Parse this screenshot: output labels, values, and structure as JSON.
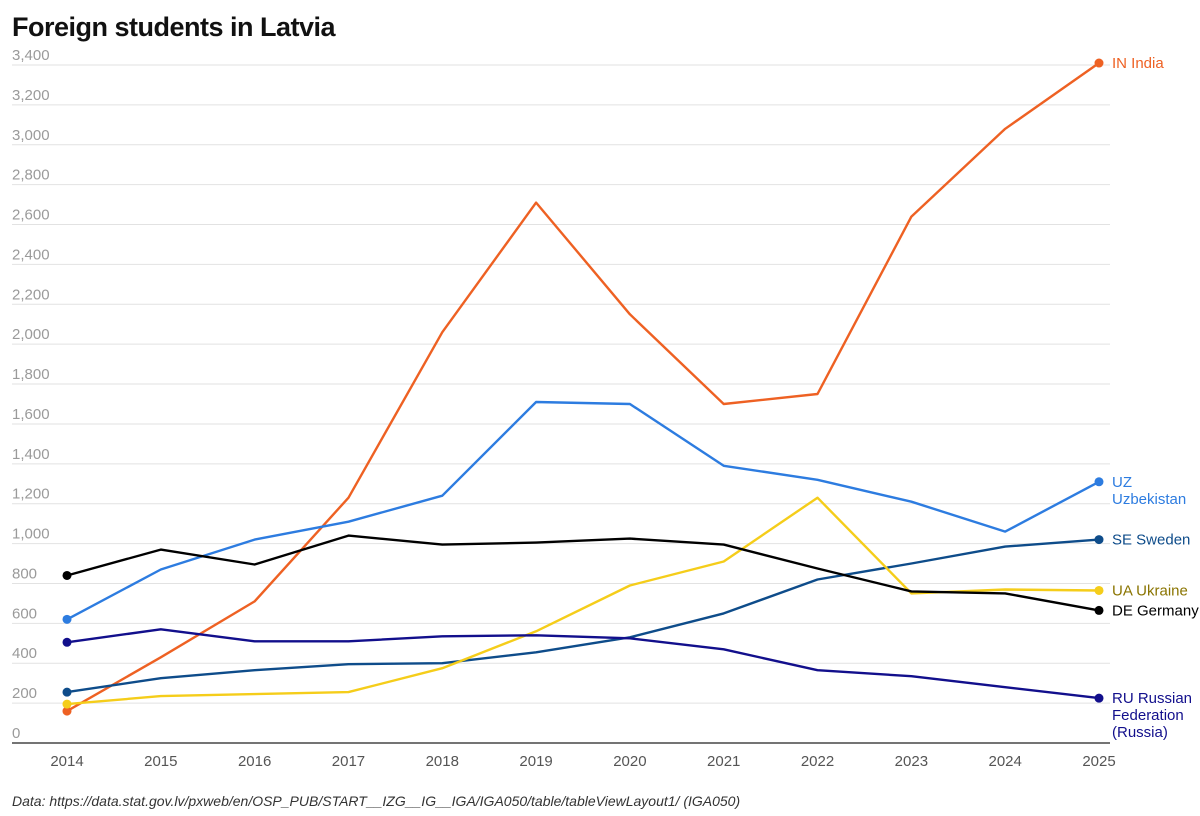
{
  "title": "Foreign students in Latvia",
  "source": "Data: https://data.stat.gov.lv/pxweb/en/OSP_PUB/START__IZG__IG__IGA/IGA050/table/tableViewLayout1/ (IGA050)",
  "chart_data": {
    "type": "line",
    "title": "Foreign students in Latvia",
    "xlabel": "",
    "ylabel": "",
    "x": [
      2014,
      2015,
      2016,
      2017,
      2018,
      2019,
      2020,
      2021,
      2022,
      2023,
      2024,
      2025
    ],
    "ylim": [
      0,
      3400
    ],
    "yticks": [
      0,
      200,
      400,
      600,
      800,
      1000,
      1200,
      1400,
      1600,
      1800,
      2000,
      2200,
      2400,
      2600,
      2800,
      3000,
      3200,
      3400
    ],
    "ytick_labels": [
      "0",
      "200",
      "400",
      "600",
      "800",
      "1,000",
      "1,200",
      "1,400",
      "1,600",
      "1,800",
      "2,000",
      "2,200",
      "2,400",
      "2,600",
      "2,800",
      "3,000",
      "3,200",
      "3,400"
    ],
    "grid": true,
    "legend": "direct labels at line ends",
    "series": [
      {
        "name": "IN India",
        "label_lines": [
          "IN India"
        ],
        "color": "#ee6123",
        "values": [
          160,
          430,
          710,
          1230,
          2060,
          2710,
          2150,
          1700,
          1750,
          2640,
          3080,
          3410
        ]
      },
      {
        "name": "UZ Uzbekistan",
        "label_lines": [
          "UZ",
          "Uzbekistan"
        ],
        "color": "#2d7ce0",
        "values": [
          620,
          870,
          1020,
          1110,
          1240,
          1710,
          1700,
          1390,
          1320,
          1210,
          1060,
          1310
        ]
      },
      {
        "name": "SE Sweden",
        "label_lines": [
          "SE Sweden"
        ],
        "color": "#0e4c8a",
        "values": [
          255,
          325,
          365,
          395,
          400,
          455,
          530,
          650,
          820,
          900,
          985,
          1020
        ]
      },
      {
        "name": "UA Ukraine",
        "label_lines": [
          "UA Ukraine"
        ],
        "color": "#f5cd1a",
        "values": [
          195,
          235,
          245,
          255,
          375,
          560,
          790,
          910,
          1230,
          750,
          770,
          765
        ]
      },
      {
        "name": "DE Germany",
        "label_lines": [
          "DE Germany"
        ],
        "color": "#000000",
        "values": [
          840,
          970,
          895,
          1040,
          995,
          1005,
          1025,
          995,
          875,
          760,
          750,
          665
        ]
      },
      {
        "name": "RU Russian Federation (Russia)",
        "label_lines": [
          "RU Russian",
          "Federation",
          "(Russia)"
        ],
        "color": "#120f8c",
        "values": [
          505,
          570,
          510,
          510,
          535,
          540,
          525,
          470,
          365,
          335,
          280,
          225
        ]
      }
    ]
  }
}
